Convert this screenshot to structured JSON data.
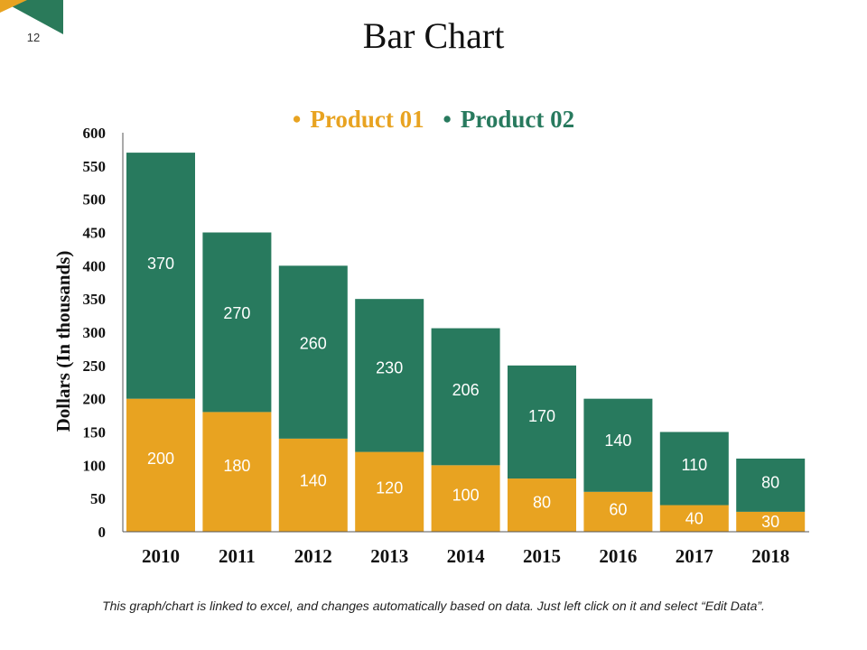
{
  "page": {
    "number": "12",
    "title": "Bar Chart",
    "footer": "This graph/chart is linked to excel, and changes automatically based on data. Just left click on it and select “Edit Data”."
  },
  "colors": {
    "product01": "#E8A321",
    "product02": "#287A5E",
    "corner_dark": "#2A7A5A",
    "corner_light": "#E8A321"
  },
  "chart_data": {
    "type": "bar",
    "stacked": true,
    "categories": [
      "2010",
      "2011",
      "2012",
      "2013",
      "2014",
      "2015",
      "2016",
      "2017",
      "2018"
    ],
    "series": [
      {
        "name": "Product 01",
        "color": "#E8A321",
        "values": [
          200,
          180,
          140,
          120,
          100,
          80,
          60,
          40,
          30
        ]
      },
      {
        "name": "Product 02",
        "color": "#287A5E",
        "values": [
          370,
          270,
          260,
          230,
          206,
          170,
          140,
          110,
          80
        ]
      }
    ],
    "ylabel": "Dollars (In thousands)",
    "ylim": [
      0,
      600
    ],
    "yticks": [
      "0",
      "50",
      "100",
      "150",
      "200",
      "250",
      "300",
      "350",
      "400",
      "450",
      "500",
      "550",
      "600"
    ],
    "legend_position": "top-center",
    "grid": false
  }
}
